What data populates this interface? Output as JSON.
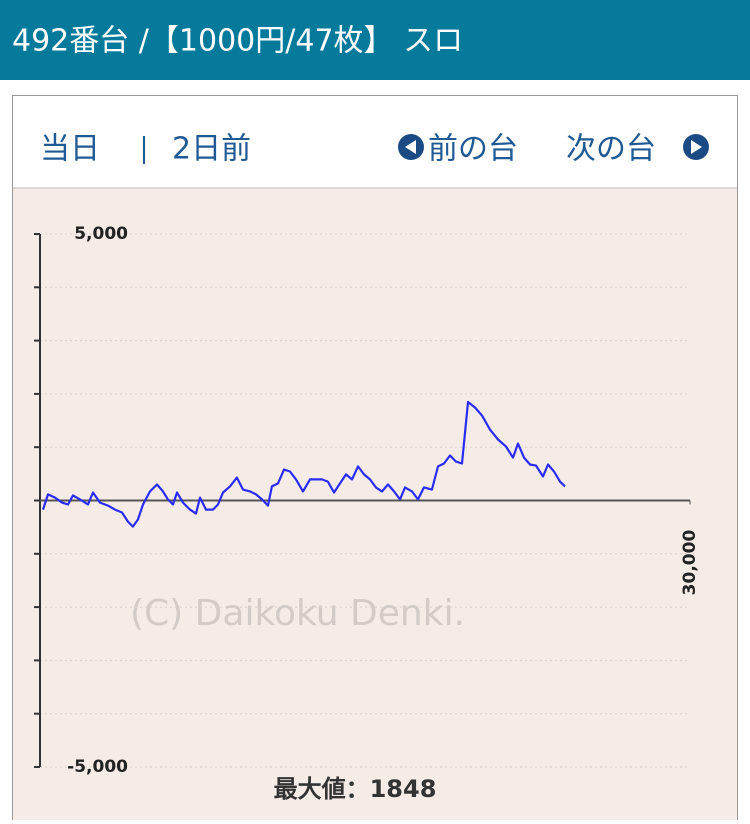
{
  "header": {
    "title": "492番台 /【1000円/47枚】 スロ"
  },
  "nav": {
    "today": "当日",
    "two_days_ago": "2日前",
    "prev": "前の台",
    "next": "次の台"
  },
  "chart_data": {
    "type": "line",
    "color": "#2a2cf5",
    "x": [
      140,
      370,
      690,
      1015,
      1290,
      1525,
      1845,
      2215,
      2445,
      2770,
      3140,
      3460,
      3785,
      4060,
      4290,
      4525,
      4755,
      5075,
      5400,
      5675,
      5905,
      6140,
      6325,
      6600,
      6925,
      7200,
      7385,
      7660,
      7985,
      8215,
      8445,
      8770,
      9090,
      9370,
      9690,
      9970,
      10245,
      10525,
      10705,
      10985,
      11260,
      11540,
      11815,
      12140,
      12460,
      12740,
      13015,
      13290,
      13570,
      13845,
      14125,
      14400,
      14675,
      14955,
      15230,
      15505,
      15785,
      16060,
      16340,
      16615,
      16845,
      17170,
      17445,
      17725,
      18090,
      18370,
      18645,
      18925,
      19200,
      19475,
      19755,
      20075,
      20400,
      20770,
      21140,
      21505,
      21830,
      22060,
      22340,
      22615,
      22890,
      23215,
      23445,
      23725,
      24000,
      24230
    ],
    "values": [
      -170,
      115,
      55,
      -40,
      -75,
      95,
      20,
      -75,
      150,
      -40,
      -95,
      -170,
      -225,
      -395,
      -490,
      -355,
      -75,
      170,
      300,
      170,
      20,
      -75,
      150,
      -40,
      -170,
      -245,
      55,
      -170,
      -170,
      -75,
      150,
      265,
      430,
      205,
      170,
      115,
      20,
      -95,
      265,
      320,
      580,
      545,
      395,
      170,
      395,
      395,
      395,
      355,
      150,
      320,
      490,
      395,
      640,
      490,
      395,
      245,
      170,
      300,
      170,
      20,
      245,
      170,
      20,
      245,
      205,
      640,
      695,
      845,
      730,
      695,
      1848,
      1745,
      1595,
      1330,
      1145,
      1015,
      805,
      1070,
      805,
      675,
      655,
      450,
      675,
      545,
      355,
      265
    ],
    "xlim": [
      0,
      30000
    ],
    "xticks": [
      {
        "value": 30000,
        "label": "30,000"
      }
    ],
    "ylim": [
      -5000,
      5000
    ],
    "yticks": [
      {
        "value": -5000,
        "label": "-5,000"
      },
      {
        "value": 5000,
        "label": "5,000"
      }
    ],
    "minor_yticks": [
      -4000,
      -3000,
      -2000,
      -1000,
      0,
      1000,
      2000,
      3000,
      4000
    ],
    "grid": true,
    "watermark": "(C) Daikoku Denki.",
    "footer": "最大値：1848"
  }
}
